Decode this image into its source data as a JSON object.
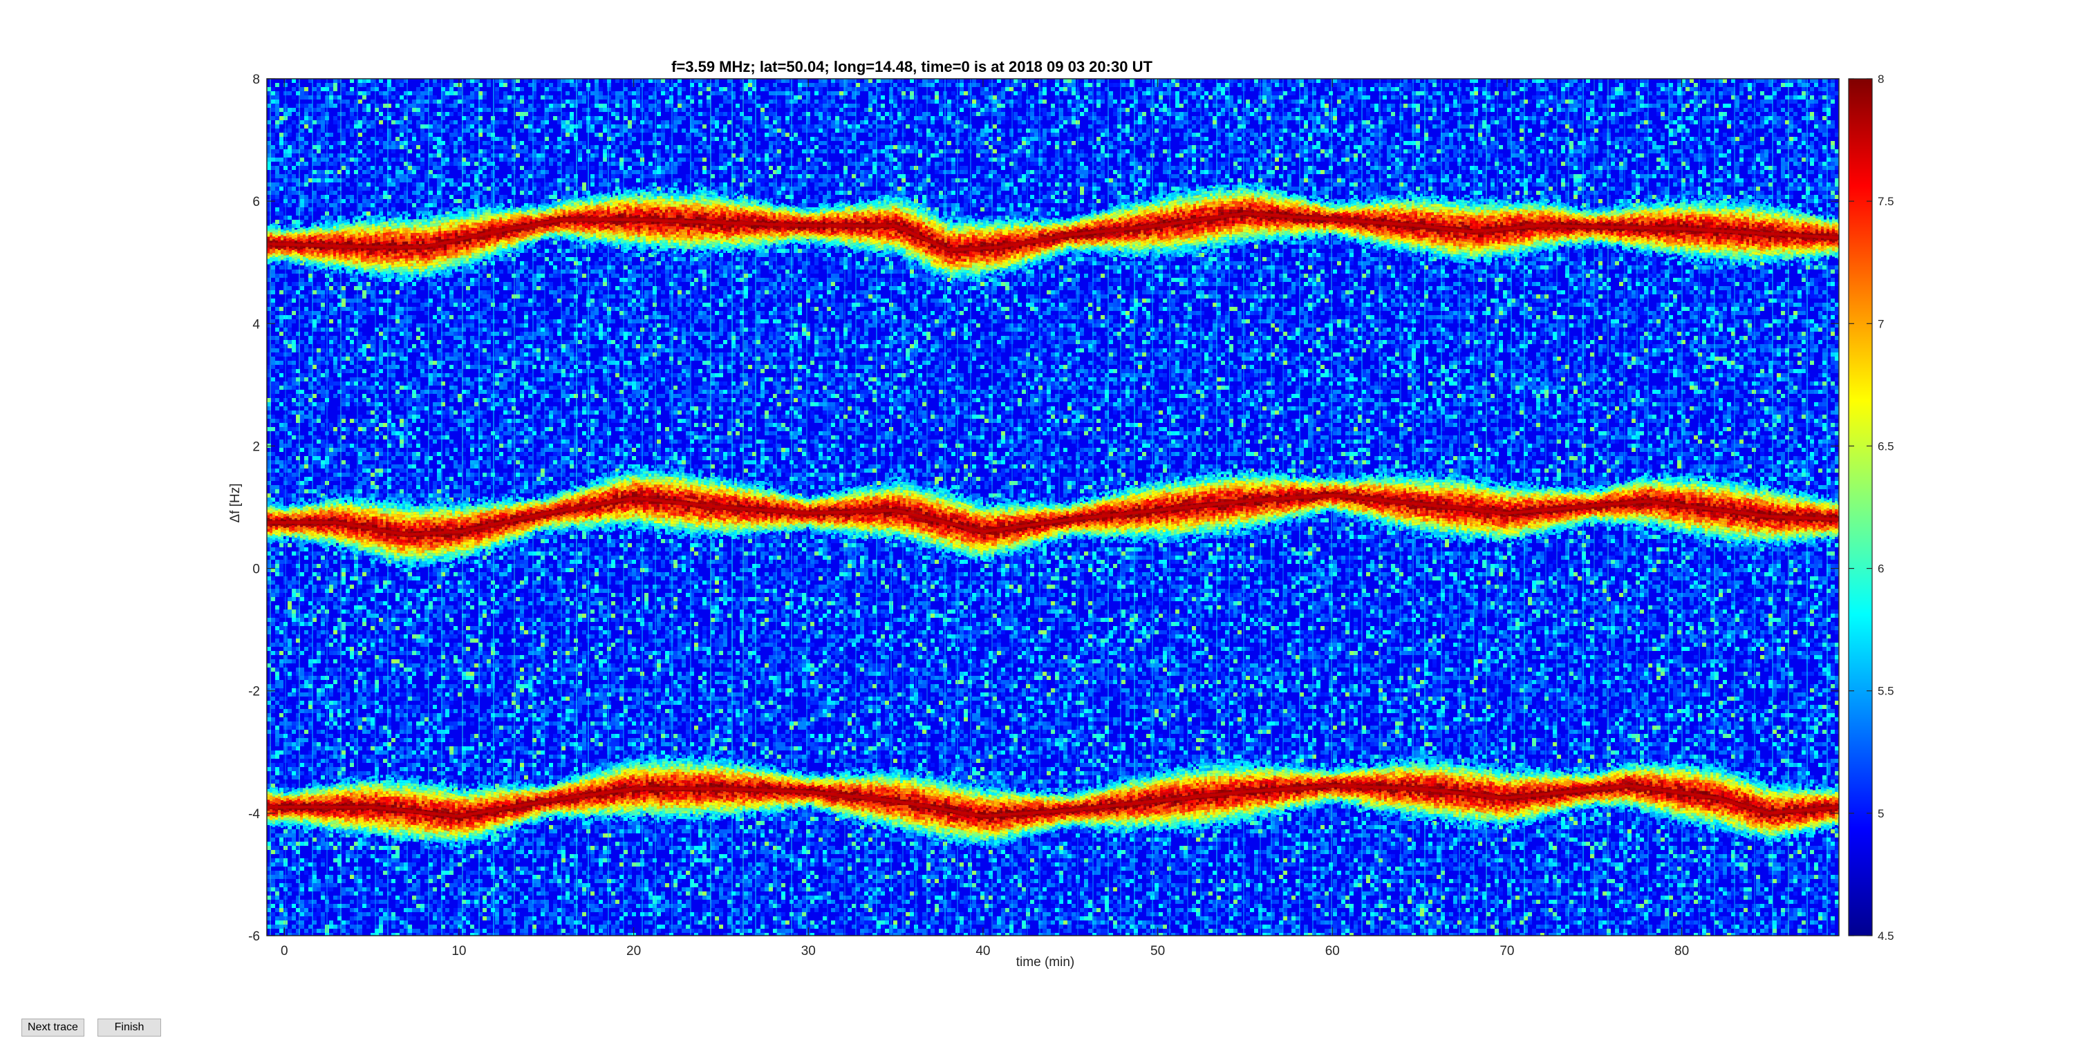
{
  "chart_data": {
    "type": "heatmap",
    "title": "f=3.59 MHz;  lat=50.04; long=14.48, time=0 is at 2018 09 03 20:30 UT",
    "xlabel": "time (min)",
    "ylabel": "Δf [Hz]",
    "xlim": [
      -1,
      89
    ],
    "ylim": [
      -6,
      8
    ],
    "xticks": [
      0,
      10,
      20,
      30,
      40,
      50,
      60,
      70,
      80
    ],
    "yticks": [
      -6,
      -4,
      -2,
      0,
      2,
      4,
      6,
      8
    ],
    "colorbar": {
      "range": [
        4.5,
        8
      ],
      "ticks": [
        4.5,
        5,
        5.5,
        6,
        6.5,
        7,
        7.5,
        8
      ],
      "colormap": "jet"
    },
    "grid": false,
    "traces": [
      {
        "points": [
          [
            -1,
            5.3
          ],
          [
            5,
            5.25
          ],
          [
            8,
            5.25
          ],
          [
            12,
            5.5
          ],
          [
            16,
            5.7
          ],
          [
            20,
            5.7
          ],
          [
            30,
            5.6
          ],
          [
            35,
            5.6
          ],
          [
            38,
            5.2
          ],
          [
            41,
            5.25
          ],
          [
            45,
            5.45
          ],
          [
            50,
            5.6
          ],
          [
            55,
            5.8
          ],
          [
            60,
            5.7
          ],
          [
            65,
            5.6
          ],
          [
            68,
            5.5
          ],
          [
            72,
            5.6
          ],
          [
            80,
            5.55
          ],
          [
            89,
            5.4
          ]
        ]
      },
      {
        "points": [
          [
            -1,
            0.75
          ],
          [
            3,
            0.75
          ],
          [
            7,
            0.55
          ],
          [
            10,
            0.6
          ],
          [
            15,
            0.9
          ],
          [
            20,
            1.15
          ],
          [
            25,
            1.0
          ],
          [
            30,
            0.9
          ],
          [
            35,
            0.95
          ],
          [
            40,
            0.6
          ],
          [
            45,
            0.8
          ],
          [
            50,
            0.95
          ],
          [
            55,
            1.1
          ],
          [
            60,
            1.2
          ],
          [
            65,
            1.05
          ],
          [
            70,
            0.9
          ],
          [
            78,
            1.1
          ],
          [
            85,
            0.85
          ],
          [
            89,
            0.8
          ]
        ]
      },
      {
        "points": [
          [
            -1,
            -3.9
          ],
          [
            5,
            -3.9
          ],
          [
            10,
            -4.05
          ],
          [
            15,
            -3.8
          ],
          [
            20,
            -3.6
          ],
          [
            25,
            -3.6
          ],
          [
            30,
            -3.65
          ],
          [
            35,
            -3.8
          ],
          [
            40,
            -4.05
          ],
          [
            45,
            -3.95
          ],
          [
            50,
            -3.8
          ],
          [
            55,
            -3.65
          ],
          [
            60,
            -3.55
          ],
          [
            65,
            -3.6
          ],
          [
            70,
            -3.75
          ],
          [
            77,
            -3.55
          ],
          [
            82,
            -3.75
          ],
          [
            85,
            -4.0
          ],
          [
            89,
            -3.9
          ]
        ]
      }
    ]
  },
  "controls": {
    "next_trace_label": "Next trace",
    "finish_label": "Finish"
  }
}
